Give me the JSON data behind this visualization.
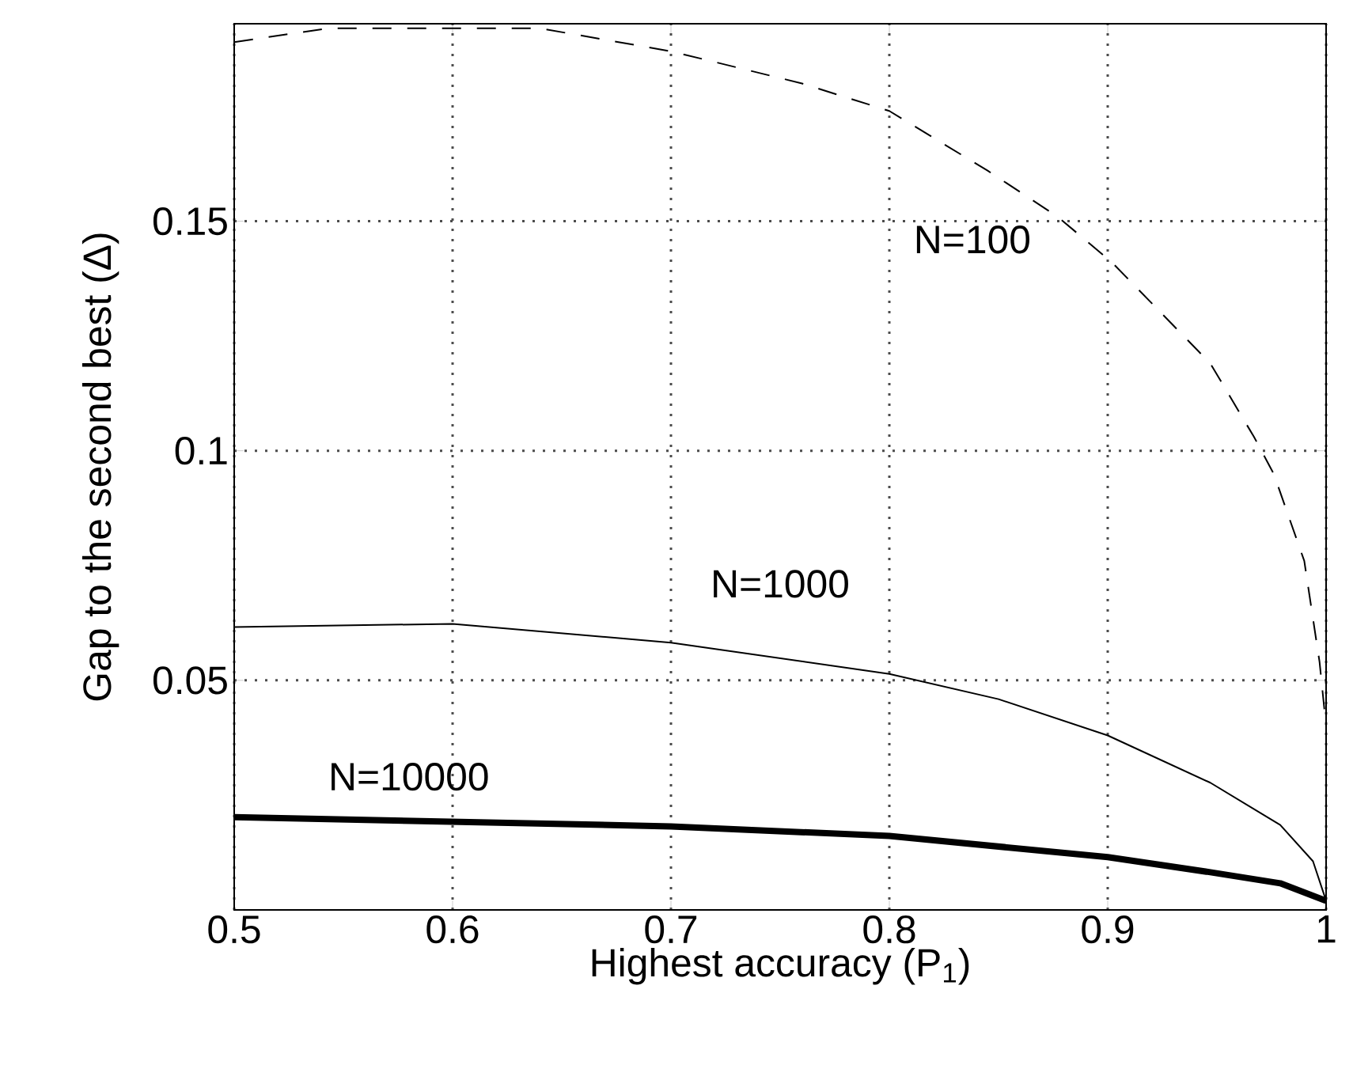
{
  "chart_data": {
    "type": "line",
    "xlabel": "Highest accuracy (P$_{1}$)",
    "ylabel": "Gap to the second best (Δ)",
    "xlim": [
      0.5,
      1
    ],
    "ylim": [
      0,
      0.193
    ],
    "xticks": [
      0.5,
      0.6,
      0.7,
      0.8,
      0.9,
      1
    ],
    "yticks": [
      0.05,
      0.1,
      0.15
    ],
    "grid": true,
    "series": [
      {
        "name": "N=100",
        "color": "#000000",
        "line_style": "dashed",
        "x": [
          0.5,
          0.543,
          0.64,
          0.7,
          0.76,
          0.8,
          0.845,
          0.877,
          0.902,
          0.947,
          0.967,
          0.976,
          0.99,
          0.997,
          1.0
        ],
        "values": [
          0.189,
          0.192,
          0.192,
          0.187,
          0.18,
          0.174,
          0.161,
          0.151,
          0.141,
          0.119,
          0.103,
          0.095,
          0.076,
          0.054,
          0.04
        ]
      },
      {
        "name": "N=1000",
        "color": "#000000",
        "line_style": "solid",
        "x": [
          0.5,
          0.6,
          0.7,
          0.8,
          0.85,
          0.9,
          0.947,
          0.979,
          0.994,
          1.0
        ],
        "values": [
          0.0616,
          0.0623,
          0.0582,
          0.0514,
          0.0459,
          0.038,
          0.0277,
          0.0185,
          0.0106,
          0.002
        ]
      },
      {
        "name": "N=10000",
        "color": "#000000",
        "line_style": "solid",
        "x": [
          0.5,
          0.6,
          0.7,
          0.8,
          0.9,
          0.947,
          0.979,
          1.0
        ],
        "values": [
          0.0202,
          0.0192,
          0.0182,
          0.0161,
          0.0115,
          0.0082,
          0.0058,
          0.002
        ]
      }
    ]
  }
}
